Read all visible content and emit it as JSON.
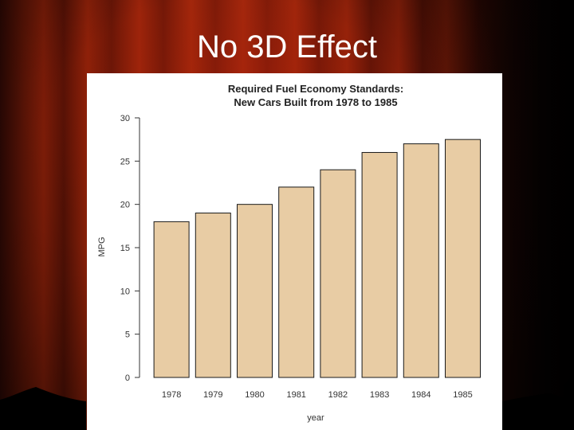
{
  "slide": {
    "title": "No 3D Effect"
  },
  "colors": {
    "bar_fill": "#e8cca4",
    "bar_stroke": "#1a1a1a",
    "title_text": "#ffffff",
    "curtain": "#7a1c08"
  },
  "chart_data": {
    "type": "bar",
    "title": "Required Fuel Economy Standards:",
    "subtitle": "New Cars Built from 1978 to 1985",
    "xlabel": "year",
    "ylabel": "MPG",
    "categories": [
      "1978",
      "1979",
      "1980",
      "1981",
      "1982",
      "1983",
      "1984",
      "1985"
    ],
    "values": [
      18,
      19,
      20,
      22,
      24,
      26,
      27,
      27.5
    ],
    "ylim": [
      0,
      30
    ],
    "yticks": [
      0,
      5,
      10,
      15,
      20,
      25,
      30
    ],
    "grid": false,
    "legend": "none"
  }
}
